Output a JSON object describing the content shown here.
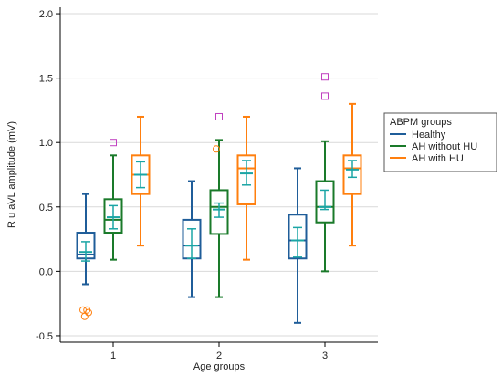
{
  "chart_data": {
    "type": "box",
    "xlabel": "Age groups",
    "ylabel": "R u aVL amplitude (mV)",
    "categories": [
      "1",
      "2",
      "3"
    ],
    "ylim": [
      -0.55,
      2.05
    ],
    "yticks": [
      -0.5,
      0.0,
      0.5,
      1.0,
      1.5,
      2.0
    ],
    "y_tick_labels": [
      "-0.5",
      "0.0",
      "0.5",
      "1.0",
      "1.5",
      "2.0"
    ],
    "grid": "horizontal",
    "legend": {
      "title": "ABPM groups",
      "position": "right"
    },
    "series": [
      {
        "name": "Healthy",
        "color": "#1f5d99",
        "boxes": [
          {
            "whisker_low": -0.1,
            "q1": 0.1,
            "median": 0.13,
            "q3": 0.3,
            "whisker_high": 0.6,
            "mean": 0.15,
            "ci_low": 0.08,
            "ci_high": 0.23,
            "outliers": [
              -0.3,
              -0.32,
              -0.35,
              -0.3
            ]
          },
          {
            "whisker_low": -0.2,
            "q1": 0.1,
            "median": 0.2,
            "q3": 0.4,
            "whisker_high": 0.7,
            "mean": 0.2,
            "ci_low": 0.1,
            "ci_high": 0.33,
            "outliers": []
          },
          {
            "whisker_low": -0.4,
            "q1": 0.1,
            "median": 0.24,
            "q3": 0.44,
            "whisker_high": 0.8,
            "mean": 0.24,
            "ci_low": 0.11,
            "ci_high": 0.34,
            "outliers": []
          }
        ]
      },
      {
        "name": "AH without HU",
        "color": "#1a7a2a",
        "boxes": [
          {
            "whisker_low": 0.09,
            "q1": 0.3,
            "median": 0.4,
            "q3": 0.56,
            "whisker_high": 0.9,
            "mean": 0.42,
            "ci_low": 0.33,
            "ci_high": 0.51,
            "outliers": []
          },
          {
            "whisker_low": -0.2,
            "q1": 0.29,
            "median": 0.5,
            "q3": 0.63,
            "whisker_high": 1.02,
            "mean": 0.48,
            "ci_low": 0.42,
            "ci_high": 0.53,
            "outliers": [
              0.95
            ]
          },
          {
            "whisker_low": 0.0,
            "q1": 0.38,
            "median": 0.5,
            "q3": 0.7,
            "whisker_high": 1.01,
            "mean": 0.5,
            "ci_low": 0.48,
            "ci_high": 0.63,
            "outliers": []
          }
        ]
      },
      {
        "name": "AH with HU",
        "color": "#ff7f0e",
        "boxes": [
          {
            "whisker_low": 0.2,
            "q1": 0.6,
            "median": 0.75,
            "q3": 0.9,
            "whisker_high": 1.2,
            "mean": 0.75,
            "ci_low": 0.65,
            "ci_high": 0.85,
            "outliers": []
          },
          {
            "whisker_low": 0.09,
            "q1": 0.52,
            "median": 0.8,
            "q3": 0.9,
            "whisker_high": 1.2,
            "mean": 0.76,
            "ci_low": 0.67,
            "ci_high": 0.86,
            "outliers": []
          },
          {
            "whisker_low": 0.2,
            "q1": 0.6,
            "median": 0.8,
            "q3": 0.9,
            "whisker_high": 1.3,
            "mean": 0.79,
            "ci_low": 0.73,
            "ci_high": 0.86,
            "outliers": []
          }
        ]
      }
    ],
    "mean_ci_color": "#1aa5a5",
    "far_outliers": [
      {
        "category": "1",
        "series": "AH without HU",
        "value": 1.0
      },
      {
        "category": "2",
        "series": "AH without HU",
        "value": 1.2
      },
      {
        "category": "3",
        "series": "AH without HU",
        "value": 1.51
      },
      {
        "category": "3",
        "series": "AH without HU",
        "value": 1.36
      }
    ],
    "far_outlier_color": "#c040c0"
  }
}
